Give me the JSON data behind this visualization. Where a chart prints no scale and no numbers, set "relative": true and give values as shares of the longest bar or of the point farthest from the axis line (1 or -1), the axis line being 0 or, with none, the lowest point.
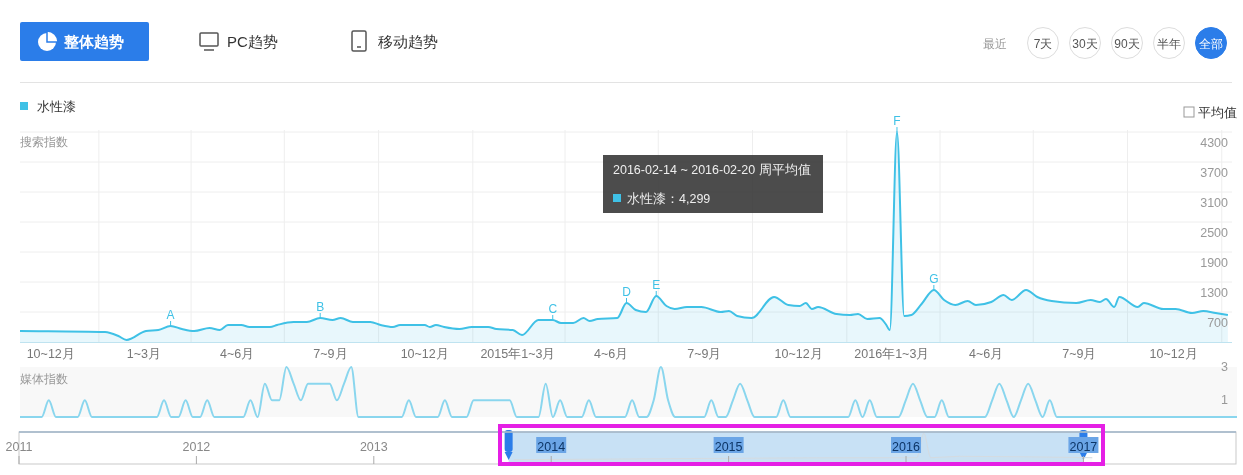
{
  "chart_data": [
    {
      "type": "other",
      "annotations": [
        "整体趋势",
        "PC趋势",
        "移动趋势",
        "最近",
        "7天",
        "30天",
        "90天",
        "半年",
        "全部",
        "平均值"
      ]
    },
    {
      "type": "area",
      "ylabel": "搜索指数",
      "legend": "top left",
      "grid": true,
      "xlim": [
        "2013-10-16",
        "2017-01-11"
      ],
      "ylim": [
        100,
        4340
      ],
      "yticks": [
        700,
        1300,
        1900,
        2500,
        3100,
        3700,
        4300
      ],
      "xticks": [
        {
          "value": "2013-11-15",
          "label": "10~12月"
        },
        {
          "value": "2014-01-01",
          "label": null
        },
        {
          "value": "2014-02-14",
          "label": "1~3月"
        },
        {
          "value": "2014-04-01",
          "label": null
        },
        {
          "value": "2014-05-16",
          "label": "4~6月"
        },
        {
          "value": "2014-07-01",
          "label": null
        },
        {
          "value": "2014-08-15",
          "label": "7~9月"
        },
        {
          "value": "2014-10-01",
          "label": null
        },
        {
          "value": "2014-11-15",
          "label": "10~12月"
        },
        {
          "value": "2015-01-01",
          "label": null
        },
        {
          "value": "2015-02-14",
          "label": "2015年1~3月"
        },
        {
          "value": "2015-04-01",
          "label": null
        },
        {
          "value": "2015-05-16",
          "label": "4~6月"
        },
        {
          "value": "2015-07-01",
          "label": null
        },
        {
          "value": "2015-08-15",
          "label": "7~9月"
        },
        {
          "value": "2015-10-01",
          "label": null
        },
        {
          "value": "2015-11-15",
          "label": "10~12月"
        },
        {
          "value": "2016-01-01",
          "label": null
        },
        {
          "value": "2016-02-14",
          "label": "2016年1~3月"
        },
        {
          "value": "2016-04-01",
          "label": null
        },
        {
          "value": "2016-05-16",
          "label": "4~6月"
        },
        {
          "value": "2016-07-01",
          "label": null
        },
        {
          "value": "2016-08-15",
          "label": "7~9月"
        },
        {
          "value": "2016-10-01",
          "label": null
        },
        {
          "value": "2016-11-15",
          "label": "10~12月"
        },
        {
          "value": "2017-01-01",
          "label": null
        }
      ],
      "x": [
        "2013-10-16",
        "2014-01-07",
        "2014-01-20",
        "2014-01-28",
        "2014-02-16",
        "2014-02-28",
        "2014-03-12",
        "2014-03-23",
        "2014-04-04",
        "2014-04-19",
        "2014-04-29",
        "2014-05-07",
        "2014-05-20",
        "2014-05-28",
        "2014-06-17",
        "2014-06-24",
        "2014-07-10",
        "2014-07-23",
        "2014-08-05",
        "2014-08-17",
        "2014-08-25",
        "2014-09-06",
        "2014-09-23",
        "2014-10-03",
        "2014-10-15",
        "2014-10-22",
        "2014-11-15",
        "2014-11-20",
        "2014-11-26",
        "2014-12-04",
        "2014-12-19",
        "2014-12-31",
        "2015-01-16",
        "2015-01-24",
        "2015-02-09",
        "2015-02-18",
        "2015-03-06",
        "2015-03-20",
        "2015-03-28",
        "2015-04-09",
        "2015-04-19",
        "2015-04-25",
        "2015-05-03",
        "2015-05-22",
        "2015-05-31",
        "2015-06-09",
        "2015-06-19",
        "2015-06-29",
        "2015-07-09",
        "2015-07-17",
        "2015-07-29",
        "2015-08-12",
        "2015-08-31",
        "2015-09-08",
        "2015-09-16",
        "2015-09-30",
        "2015-10-22",
        "2015-11-05",
        "2015-11-16",
        "2015-11-22",
        "2015-11-28",
        "2015-12-04",
        "2015-12-22",
        "2016-01-04",
        "2016-01-12",
        "2016-01-21",
        "2016-02-02",
        "2016-02-08",
        "2016-02-12",
        "2016-02-19",
        "2016-02-26",
        "2016-03-04",
        "2016-03-14",
        "2016-03-26",
        "2016-04-05",
        "2016-04-16",
        "2016-04-28",
        "2016-05-06",
        "2016-05-21",
        "2016-06-02",
        "2016-06-10",
        "2016-06-24",
        "2016-07-05",
        "2016-07-19",
        "2016-08-12",
        "2016-08-26",
        "2016-09-04",
        "2016-09-10",
        "2016-09-18",
        "2016-09-23",
        "2016-10-11",
        "2016-10-17",
        "2016-11-05",
        "2016-11-17",
        "2016-12-03",
        "2016-12-14",
        "2016-12-26",
        "2017-01-07"
      ],
      "series": [
        {
          "name": "水性漆",
          "color": "#3fc1e6",
          "values": [
            320,
            300,
            220,
            140,
            320,
            340,
            420,
            360,
            320,
            380,
            340,
            440,
            440,
            400,
            400,
            440,
            500,
            500,
            580,
            540,
            580,
            500,
            500,
            440,
            400,
            440,
            440,
            400,
            440,
            400,
            360,
            400,
            400,
            360,
            340,
            240,
            540,
            540,
            480,
            480,
            580,
            520,
            560,
            580,
            880,
            740,
            700,
            1020,
            820,
            760,
            800,
            800,
            700,
            720,
            620,
            580,
            1000,
            840,
            820,
            880,
            760,
            800,
            660,
            640,
            660,
            560,
            580,
            460,
            340,
            4299,
            620,
            640,
            860,
            1140,
            940,
            840,
            920,
            840,
            900,
            1040,
            940,
            1140,
            1000,
            920,
            880,
            940,
            900,
            960,
            800,
            1000,
            800,
            880,
            760,
            760,
            680,
            720,
            680,
            640
          ]
        }
      ],
      "annotations": [
        {
          "text": "A",
          "x": "2014-03-12",
          "y": 420
        },
        {
          "text": "B",
          "x": "2014-08-05",
          "y": 580
        },
        {
          "text": "C",
          "x": "2015-03-20",
          "y": 540
        },
        {
          "text": "D",
          "x": "2015-05-31",
          "y": 880
        },
        {
          "text": "E",
          "x": "2015-06-29",
          "y": 1020
        },
        {
          "text": "F",
          "x": "2016-02-19",
          "y": 4299
        },
        {
          "text": "G",
          "x": "2016-03-26",
          "y": 1140
        },
        "2016-02-14 ~ 2016-02-20 周平均值",
        "水性漆：4,299"
      ]
    },
    {
      "type": "line",
      "ylabel": "媒体指数",
      "tick_labels": "y",
      "ylim": [
        0,
        3
      ],
      "yticks": [
        1,
        3
      ],
      "categories": [
        null,
        null,
        null,
        null,
        null,
        null,
        null,
        null,
        null,
        null,
        null,
        null,
        null,
        null,
        null,
        null,
        null,
        null,
        null,
        null,
        null,
        null,
        null,
        null,
        null,
        null,
        null,
        null,
        null,
        null,
        null,
        null,
        null,
        null,
        null,
        null,
        null,
        null,
        null,
        null,
        null,
        null,
        null,
        null,
        null,
        null,
        null,
        null,
        null,
        null,
        null,
        null,
        null,
        null,
        null,
        null,
        null,
        null,
        null,
        null,
        null,
        null,
        null,
        null,
        null,
        null,
        null,
        null,
        null,
        null,
        null,
        null,
        null,
        null,
        null,
        null,
        null,
        null,
        null,
        null,
        null,
        null,
        null,
        null,
        null,
        null,
        null,
        null,
        null,
        null,
        null,
        null,
        null,
        null,
        null,
        null,
        null,
        null,
        null,
        null,
        null,
        null,
        null,
        null,
        null,
        null,
        null,
        null,
        null,
        null,
        null,
        null,
        null,
        null,
        null,
        null,
        null,
        null,
        null,
        null,
        null,
        null,
        null,
        null,
        null,
        null,
        null,
        null,
        null,
        null,
        null,
        null,
        null,
        null,
        null,
        null,
        null,
        null,
        null,
        null,
        null,
        null,
        null,
        null,
        null,
        null,
        null,
        null,
        null,
        null,
        null,
        null,
        null,
        null,
        null,
        null,
        null,
        null,
        null,
        null,
        null,
        null,
        null,
        null,
        null,
        null,
        null,
        null,
        null,
        null
      ],
      "series": [
        {
          "color": "#8ad6ee",
          "values": [
            0,
            0,
            0,
            0,
            1,
            0,
            0,
            0,
            0,
            1,
            0,
            0,
            0,
            0,
            0,
            0,
            0,
            0,
            0,
            0,
            1,
            0,
            0,
            1,
            0,
            0,
            1,
            0,
            0,
            0,
            0,
            0,
            1,
            0,
            2,
            1,
            1,
            3,
            2,
            1,
            2,
            2,
            2,
            2,
            1,
            2,
            3,
            0,
            0,
            0,
            0,
            0,
            0,
            0,
            1,
            0,
            0,
            0,
            0,
            1,
            0,
            0,
            0,
            1,
            1,
            1,
            1,
            1,
            1,
            0,
            0,
            0,
            0,
            2,
            0,
            1,
            0,
            0,
            0,
            1,
            0,
            0,
            0,
            0,
            0,
            1,
            0,
            0,
            1,
            3,
            1,
            0,
            0,
            0,
            0,
            0,
            1,
            0,
            0,
            1,
            2,
            1,
            0,
            0,
            0,
            0,
            1,
            0,
            0,
            0,
            0,
            0,
            0,
            0,
            0,
            0,
            1,
            0,
            1,
            0,
            0,
            0,
            0,
            1,
            2,
            1,
            0,
            0,
            1,
            0,
            0,
            0,
            0,
            0,
            0,
            1,
            2,
            1,
            0,
            1,
            2,
            1,
            0,
            1,
            0,
            0,
            0,
            0,
            0,
            0,
            0,
            0,
            0,
            0,
            0,
            0,
            0,
            0,
            0,
            0,
            0,
            0,
            0,
            0,
            0,
            0,
            0,
            0,
            0,
            0
          ]
        }
      ]
    },
    {
      "type": "area",
      "relative": true,
      "tick_labels": "x",
      "xlim": [
        2011,
        2017.86
      ],
      "xticks": [
        2011,
        2012,
        2013,
        2014,
        2015,
        2016,
        2017
      ],
      "bands": [
        {
          "axis": "x",
          "from": 2013.76,
          "to": 2017.0,
          "color": "#c8e1f5"
        }
      ],
      "x": [
        2013.79,
        2015.9,
        2016.06,
        2016.1,
        2016.14,
        2016.3,
        2017.05
      ],
      "series": [
        {
          "color": "#d5dbe0",
          "values": [
            0.08,
            0.15,
            0.15,
            1,
            0.15,
            0.2,
            0.15
          ]
        }
      ]
    }
  ]
}
